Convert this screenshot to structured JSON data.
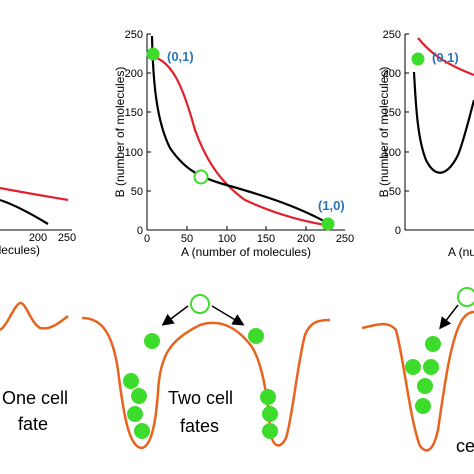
{
  "panels": [
    {
      "id": "left",
      "x_ticks": [
        "200",
        "250"
      ],
      "x_label": "A (number of molecules)"
    },
    {
      "id": "middle",
      "y_ticks": [
        "250",
        "200",
        "150",
        "100",
        "50",
        "0"
      ],
      "x_ticks": [
        "0",
        "50",
        "100",
        "150",
        "200",
        "250"
      ],
      "y_label": "B (number of molecules)",
      "x_label": "A (number of molecules)",
      "point_labels": [
        "(0,1)",
        "(1,0)"
      ]
    },
    {
      "id": "right",
      "y_ticks": [
        "250",
        "200",
        "150",
        "100",
        "50",
        "0"
      ],
      "y_label": "B (number of molecules)",
      "x_label": "A (number of molecules)",
      "point_labels": [
        "(0,1)"
      ]
    }
  ],
  "landscapes": {
    "left_caption": [
      "One cell",
      "fate"
    ],
    "middle_caption": [
      "Two cell",
      "fates"
    ],
    "right_caption": [
      "ce"
    ]
  },
  "colors": {
    "red_curve": "#e0202a",
    "black_curve": "#000000",
    "stable_point": "#3ddc2c",
    "landscape": "#e8641e"
  }
}
